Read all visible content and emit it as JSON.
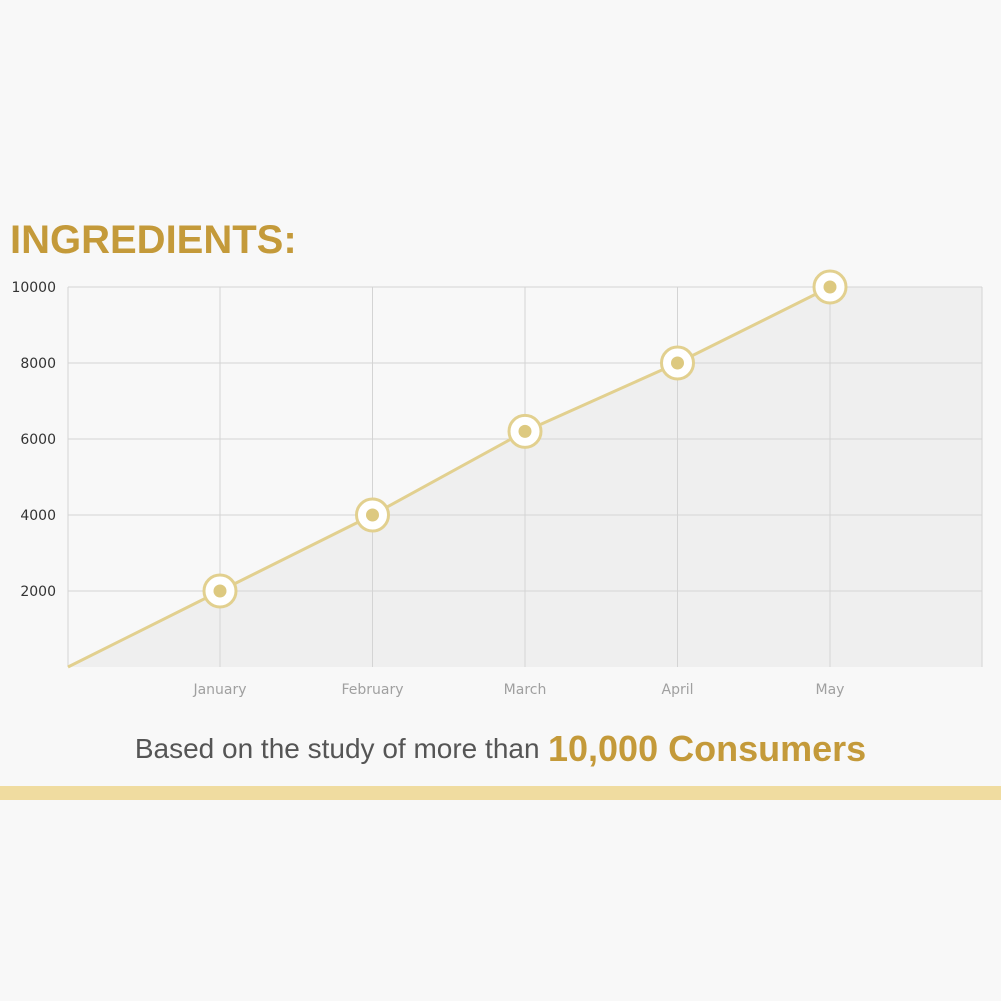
{
  "heading": "INGREDIENTS:",
  "tagline": {
    "prefix": "Based on the study of more than",
    "highlight": "10,000 Consumers"
  },
  "colors": {
    "accent": "#c49a3a",
    "line": "#e2d08f",
    "marker_fill": "#ddc980",
    "band": "#f0dca0",
    "grid": "#d4d4d4",
    "area": "#efefef"
  },
  "chart_data": {
    "type": "line",
    "categories": [
      "January",
      "February",
      "March",
      "April",
      "May"
    ],
    "values": [
      2000,
      4000,
      6200,
      8000,
      10000
    ],
    "y_ticks": [
      2000,
      4000,
      6000,
      8000,
      10000
    ],
    "ylim": [
      0,
      10000
    ],
    "line_starts_at_origin": true,
    "area_fill": true,
    "grid": true,
    "title": "",
    "xlabel": "",
    "ylabel": ""
  }
}
